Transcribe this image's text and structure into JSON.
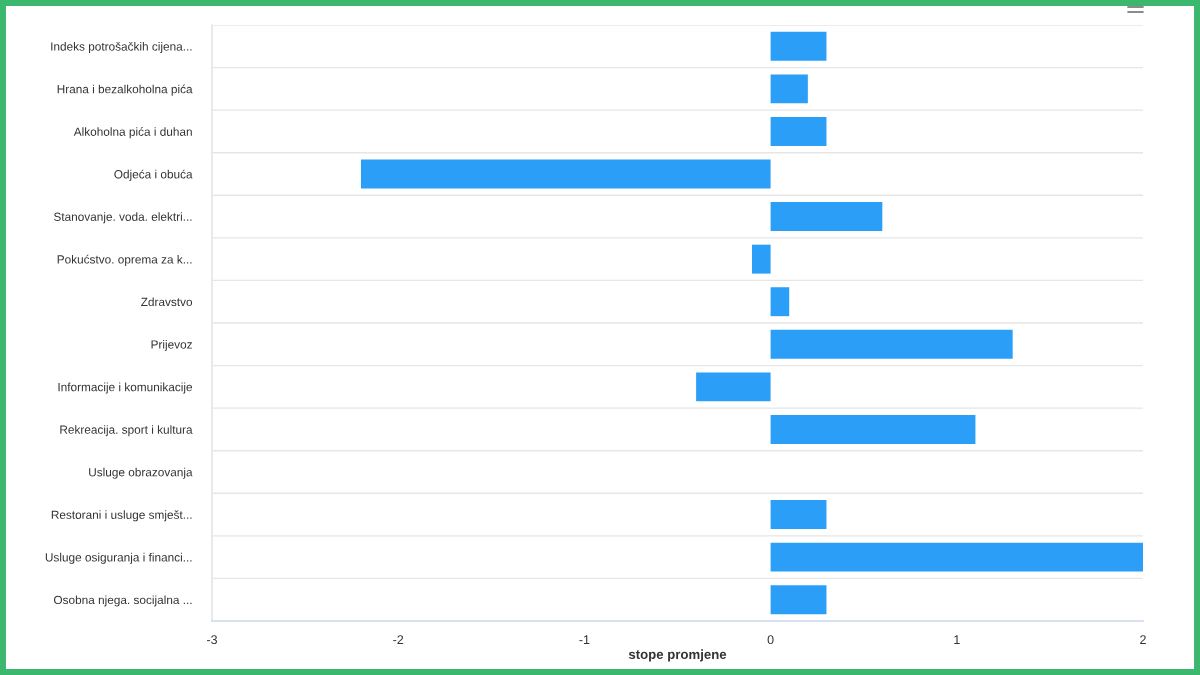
{
  "chart_data": {
    "type": "bar",
    "orientation": "horizontal",
    "xlabel": "stope promjene",
    "categories": [
      "Indeks potrošačkih cijena...",
      "Hrana i bezalkoholna pića",
      "Alkoholna pića i duhan",
      "Odjeća i obuća",
      "Stanovanje. voda. elektri...",
      "Pokućstvo. oprema za k...",
      "Zdravstvo",
      "Prijevoz",
      "Informacije i komunikacije",
      "Rekreacija. sport i kultura",
      "Usluge obrazovanja",
      "Restorani i usluge smješt...",
      "Usluge osiguranja i financi...",
      "Osobna njega. socijalna ..."
    ],
    "values": [
      0.3,
      0.2,
      0.3,
      -2.2,
      0.6,
      -0.1,
      0.1,
      1.3,
      -0.4,
      1.1,
      0,
      0.3,
      2,
      0.3
    ],
    "color": "#2b9ef8",
    "xlim": [
      -3,
      2
    ],
    "xticks": [
      -3,
      -2,
      -1,
      0,
      1,
      2
    ],
    "grid": "y"
  }
}
